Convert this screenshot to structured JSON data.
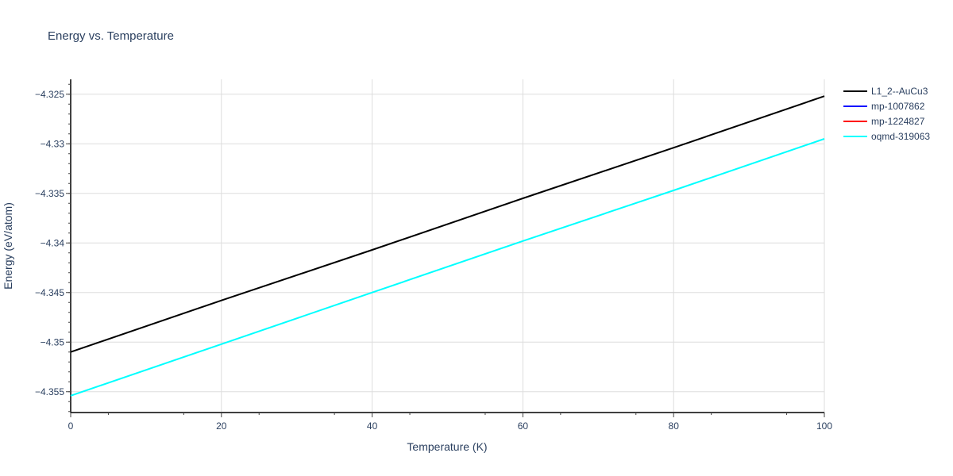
{
  "chart_data": {
    "type": "line",
    "title": "Energy vs. Temperature",
    "xlabel": "Temperature (K)",
    "ylabel": "Energy (eV/atom)",
    "xlim": [
      0,
      100
    ],
    "ylim": [
      -4.3571,
      -4.3235
    ],
    "x_ticks": [
      0,
      20,
      40,
      60,
      80,
      100
    ],
    "x_tick_labels": [
      "0",
      "20",
      "40",
      "60",
      "80",
      "100"
    ],
    "y_ticks": [
      -4.355,
      -4.35,
      -4.345,
      -4.34,
      -4.335,
      -4.33,
      -4.325
    ],
    "y_tick_labels": [
      "−4.355",
      "−4.35",
      "−4.345",
      "−4.34",
      "−4.335",
      "−4.33",
      "−4.325"
    ],
    "grid": true,
    "legend_position": "right",
    "series": [
      {
        "name": "L1_2--AuCu3",
        "color": "#000000",
        "x": [
          0,
          20,
          40,
          60,
          80,
          100
        ],
        "y": [
          -4.351,
          -4.3458,
          -4.3407,
          -4.3355,
          -4.3304,
          -4.3252
        ]
      },
      {
        "name": "mp-1007862",
        "color": "#0000ff",
        "x": [],
        "y": []
      },
      {
        "name": "mp-1224827",
        "color": "#ff0000",
        "x": [],
        "y": []
      },
      {
        "name": "oqmd-319063",
        "color": "#00ffff",
        "x": [
          0,
          20,
          40,
          60,
          80,
          100
        ],
        "y": [
          -4.3554,
          -4.3502,
          -4.345,
          -4.3398,
          -4.3347,
          -4.3295
        ]
      }
    ]
  }
}
